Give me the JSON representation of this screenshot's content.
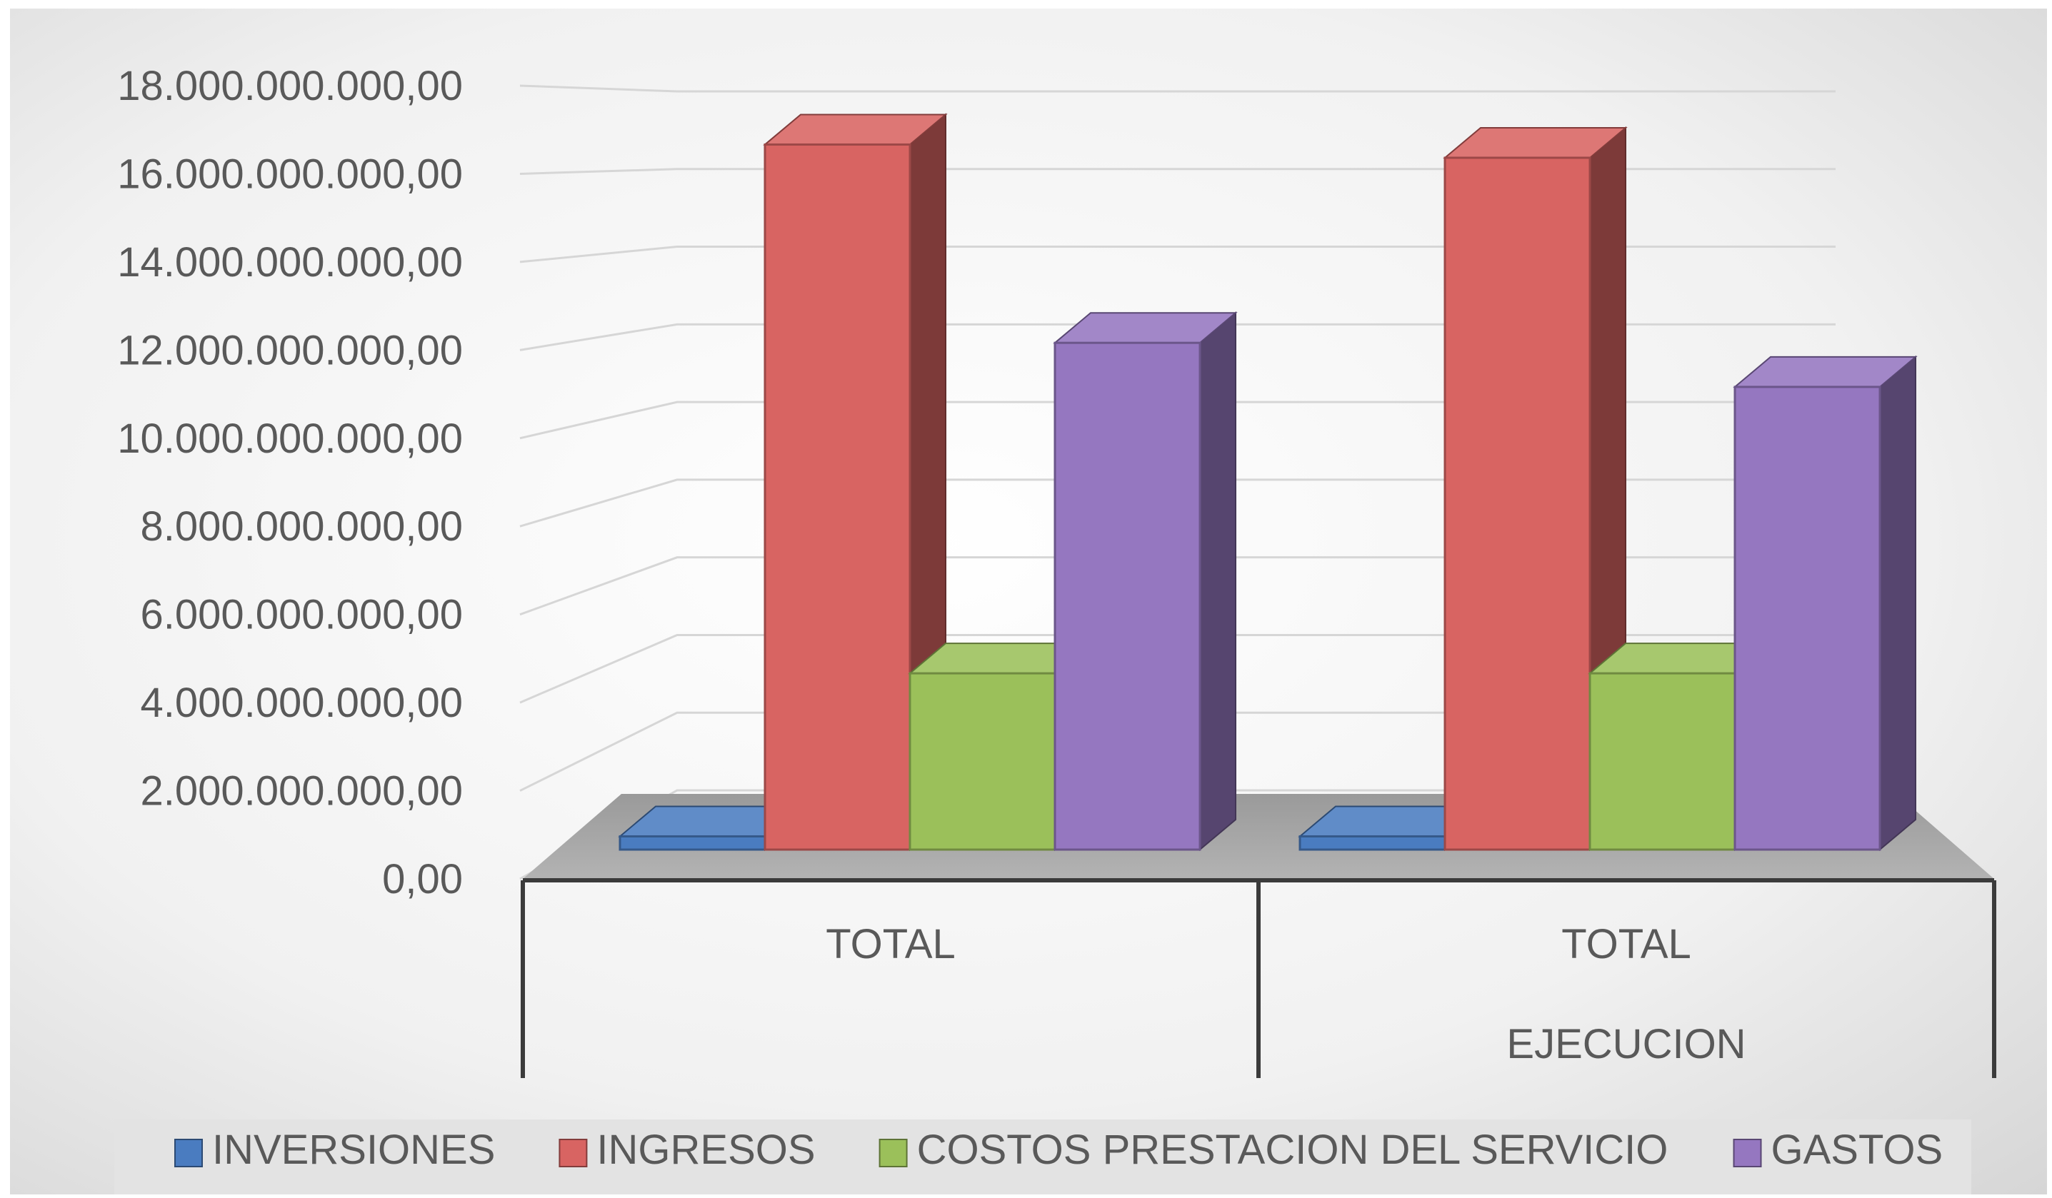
{
  "chart_data": {
    "type": "bar",
    "style": "3d-clustered-column",
    "categories": [
      {
        "lines": [
          "TOTAL"
        ]
      },
      {
        "lines": [
          "TOTAL",
          "EJECUCION"
        ]
      }
    ],
    "series": [
      {
        "name": "INVERSIONES",
        "color": "#4a7cc0",
        "values": [
          300000000,
          300000000
        ]
      },
      {
        "name": "INGRESOS",
        "color": "#d86462",
        "values": [
          16000000000,
          15700000000
        ]
      },
      {
        "name": "COSTOS PRESTACION DEL SERVICIO",
        "color": "#9bc05a",
        "values": [
          4000000000,
          4000000000
        ]
      },
      {
        "name": "GASTOS",
        "color": "#9577c0",
        "values": [
          11500000000,
          10500000000
        ]
      }
    ],
    "y_ticks": [
      "0,00",
      "2.000.000.000,00",
      "4.000.000.000,00",
      "6.000.000.000,00",
      "8.000.000.000,00",
      "10.000.000.000,00",
      "12.000.000.000,00",
      "14.000.000.000,00",
      "16.000.000.000,00",
      "18.000.000.000,00"
    ],
    "ylim": [
      0,
      18000000000
    ],
    "grid": true,
    "legend_position": "bottom",
    "background": "light-gray-gradient",
    "floor_color": "#a3a3a3"
  }
}
